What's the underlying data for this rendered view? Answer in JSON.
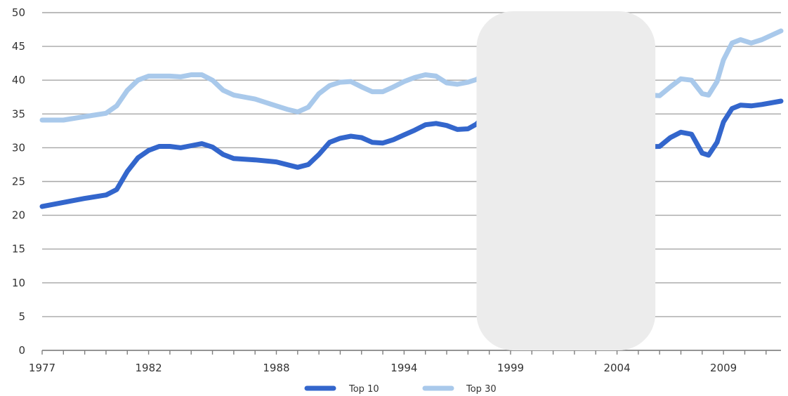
{
  "chart_data": {
    "type": "line",
    "title": "",
    "xlabel": "",
    "ylabel": "",
    "xlim": [
      1977,
      2011.7
    ],
    "ylim": [
      0,
      50
    ],
    "y_ticks": [
      0,
      5,
      10,
      15,
      20,
      25,
      30,
      35,
      40,
      45,
      50
    ],
    "x_tick_labels": [
      "1977",
      "1982",
      "1988",
      "1994",
      "1999",
      "2004",
      "2009"
    ],
    "x_tick_years": [
      1977,
      1982,
      1988,
      1994,
      1999,
      2004,
      2009
    ],
    "grid": "horizontal",
    "legend_position": "bottom",
    "occluded_x_range": [
      1997.4,
      2005.8
    ],
    "series": [
      {
        "name": "Top 10",
        "color": "#3366cc",
        "points": [
          [
            1977,
            21.3
          ],
          [
            1978,
            21.9
          ],
          [
            1979,
            22.5
          ],
          [
            1980,
            23.0
          ],
          [
            1980.5,
            23.8
          ],
          [
            1981,
            26.5
          ],
          [
            1981.5,
            28.5
          ],
          [
            1982,
            29.6
          ],
          [
            1982.5,
            30.2
          ],
          [
            1983,
            30.2
          ],
          [
            1983.5,
            30.0
          ],
          [
            1984,
            30.3
          ],
          [
            1984.5,
            30.6
          ],
          [
            1985,
            30.1
          ],
          [
            1985.5,
            29.0
          ],
          [
            1986,
            28.4
          ],
          [
            1987,
            28.2
          ],
          [
            1988,
            27.9
          ],
          [
            1989,
            27.1
          ],
          [
            1989.5,
            27.5
          ],
          [
            1990,
            29.0
          ],
          [
            1990.5,
            30.8
          ],
          [
            1991,
            31.4
          ],
          [
            1991.5,
            31.7
          ],
          [
            1992,
            31.5
          ],
          [
            1992.5,
            30.8
          ],
          [
            1993,
            30.7
          ],
          [
            1993.5,
            31.2
          ],
          [
            1994,
            31.9
          ],
          [
            1994.5,
            32.6
          ],
          [
            1995,
            33.4
          ],
          [
            1995.5,
            33.6
          ],
          [
            1996,
            33.3
          ],
          [
            1996.5,
            32.7
          ],
          [
            1997,
            32.8
          ],
          [
            1997.4,
            33.5
          ],
          [
            1997.7,
            34.5
          ],
          [
            1998,
            35.1
          ],
          [
            1999,
            34.5
          ],
          [
            2000,
            32.0
          ],
          [
            2001,
            31.0
          ],
          [
            2002,
            30.2
          ],
          [
            2003,
            29.8
          ],
          [
            2004,
            29.9
          ],
          [
            2005,
            30.1
          ],
          [
            2006,
            30.2
          ],
          [
            2006.5,
            31.5
          ],
          [
            2007,
            32.3
          ],
          [
            2007.5,
            32.0
          ],
          [
            2008,
            29.2
          ],
          [
            2008.3,
            28.9
          ],
          [
            2008.7,
            30.8
          ],
          [
            2009,
            33.8
          ],
          [
            2009.4,
            35.8
          ],
          [
            2009.8,
            36.3
          ],
          [
            2010.3,
            36.2
          ],
          [
            2010.8,
            36.4
          ],
          [
            2011.7,
            36.9
          ]
        ]
      },
      {
        "name": "Top 30",
        "color": "#a9c9eb",
        "points": [
          [
            1977,
            34.1
          ],
          [
            1978,
            34.1
          ],
          [
            1979,
            34.6
          ],
          [
            1980,
            35.1
          ],
          [
            1980.5,
            36.2
          ],
          [
            1981,
            38.5
          ],
          [
            1981.5,
            40.0
          ],
          [
            1982,
            40.6
          ],
          [
            1982.5,
            40.6
          ],
          [
            1983,
            40.6
          ],
          [
            1983.5,
            40.5
          ],
          [
            1984,
            40.8
          ],
          [
            1984.5,
            40.8
          ],
          [
            1985,
            40.0
          ],
          [
            1985.5,
            38.5
          ],
          [
            1986,
            37.8
          ],
          [
            1987,
            37.2
          ],
          [
            1988,
            36.2
          ],
          [
            1988.5,
            35.7
          ],
          [
            1989,
            35.3
          ],
          [
            1989.5,
            36.0
          ],
          [
            1990,
            38.0
          ],
          [
            1990.5,
            39.2
          ],
          [
            1991,
            39.7
          ],
          [
            1991.5,
            39.8
          ],
          [
            1992,
            39.0
          ],
          [
            1992.5,
            38.3
          ],
          [
            1993,
            38.3
          ],
          [
            1993.5,
            39.0
          ],
          [
            1994,
            39.8
          ],
          [
            1994.5,
            40.4
          ],
          [
            1995,
            40.8
          ],
          [
            1995.5,
            40.6
          ],
          [
            1996,
            39.6
          ],
          [
            1996.5,
            39.4
          ],
          [
            1997,
            39.7
          ],
          [
            1997.4,
            40.1
          ],
          [
            1997.7,
            40.8
          ],
          [
            1998,
            41.0
          ],
          [
            1999,
            40.5
          ],
          [
            2000,
            39.5
          ],
          [
            2001,
            39.0
          ],
          [
            2002,
            38.5
          ],
          [
            2003,
            38.2
          ],
          [
            2004,
            38.0
          ],
          [
            2005,
            37.9
          ],
          [
            2006,
            37.7
          ],
          [
            2006.5,
            39.0
          ],
          [
            2007,
            40.2
          ],
          [
            2007.5,
            40.0
          ],
          [
            2008,
            38.0
          ],
          [
            2008.3,
            37.8
          ],
          [
            2008.7,
            39.8
          ],
          [
            2009,
            43.0
          ],
          [
            2009.4,
            45.5
          ],
          [
            2009.8,
            46.0
          ],
          [
            2010.3,
            45.5
          ],
          [
            2010.8,
            46.0
          ],
          [
            2011.7,
            47.3
          ]
        ]
      }
    ]
  }
}
